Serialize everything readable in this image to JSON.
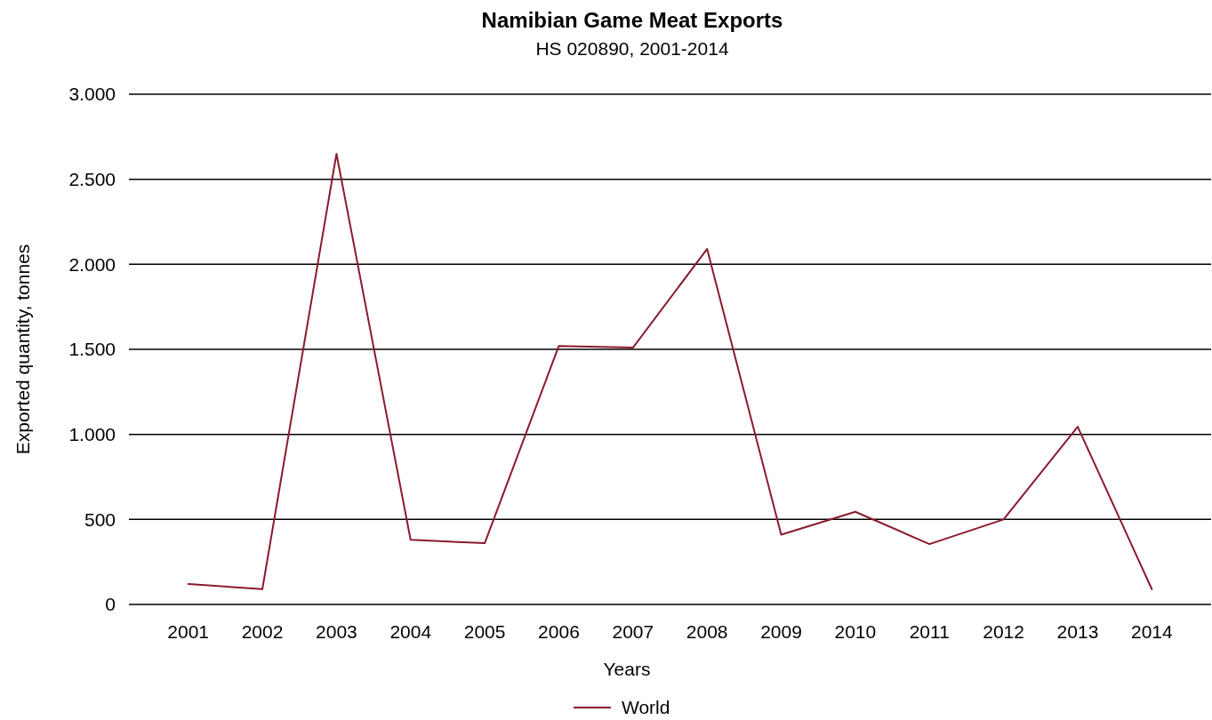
{
  "chart_data": {
    "type": "line",
    "title": "Namibian Game Meat Exports",
    "subtitle": "HS 020890, 2001-2014",
    "xlabel": "Years",
    "ylabel": "Exported quantity, tonnes",
    "categories": [
      "2001",
      "2002",
      "2003",
      "2004",
      "2005",
      "2006",
      "2007",
      "2008",
      "2009",
      "2010",
      "2011",
      "2012",
      "2013",
      "2014"
    ],
    "series": [
      {
        "name": "World",
        "color": "#8b1a2e",
        "values": [
          120,
          90,
          2650,
          380,
          360,
          1520,
          1510,
          2090,
          410,
          545,
          355,
          500,
          1045,
          90
        ]
      }
    ],
    "ylim": [
      0,
      3000
    ],
    "yticks": [
      0,
      500,
      {
        "value": 1000,
        "label": "1.000"
      },
      {
        "value": 1500,
        "label": "1.500"
      },
      {
        "value": 2000,
        "label": "2.000"
      },
      {
        "value": 2500,
        "label": "2.500"
      },
      {
        "value": 3000,
        "label": "3.000"
      }
    ],
    "grid": "y",
    "legend": "bottom",
    "marker": "none",
    "line_style": "solid"
  }
}
